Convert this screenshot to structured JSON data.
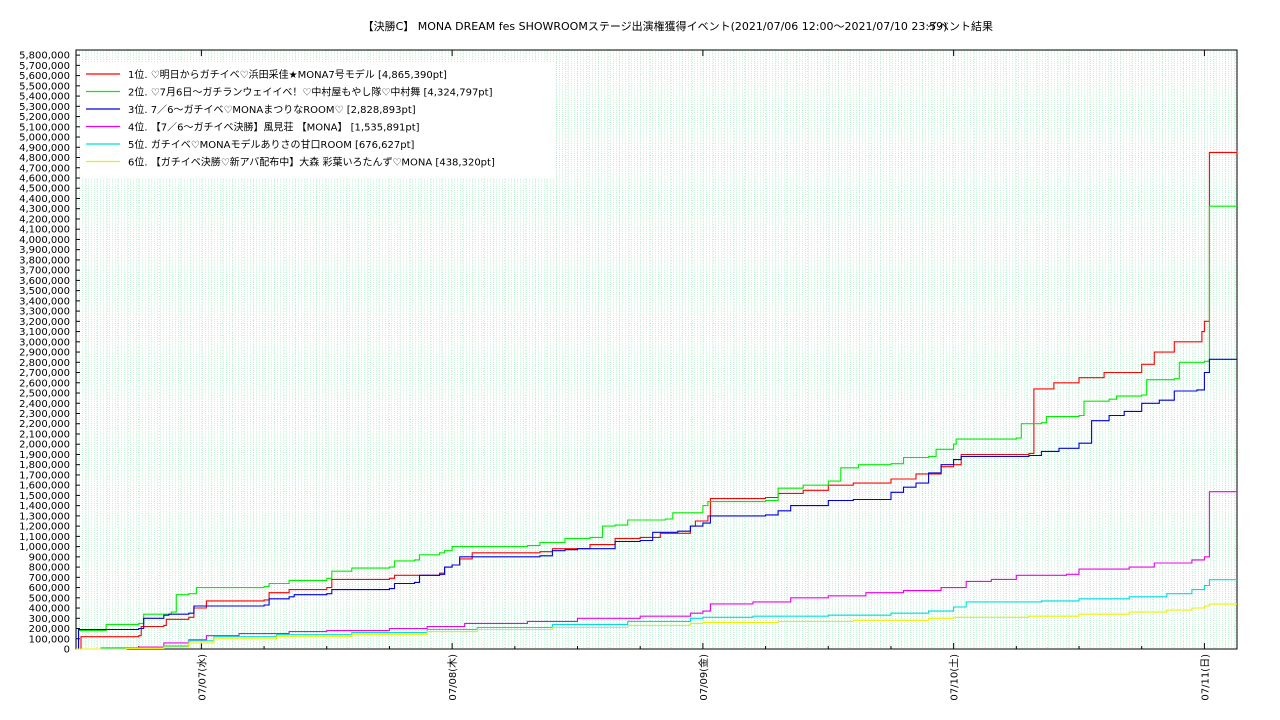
{
  "chart_data": {
    "type": "line",
    "title": "【決勝C】 MONA DREAM fes SHOWROOMステージ出演権獲得イベント(2021/07/06 12:00〜2021/07/10 23:59)",
    "subtitle": "イベント結果",
    "xlabel": "",
    "ylabel": "",
    "x_unit": "days since 2021/07/06 00:00",
    "xlim": [
      0.5,
      5.13
    ],
    "ylim": [
      0,
      5850000
    ],
    "x_ticks": [
      {
        "x": 1,
        "label": "07/07(水)"
      },
      {
        "x": 2,
        "label": "07/08(木)"
      },
      {
        "x": 3,
        "label": "07/09(金)"
      },
      {
        "x": 4,
        "label": "07/10(土)"
      },
      {
        "x": 5,
        "label": "07/11(日)"
      }
    ],
    "y_ticks": [
      "0",
      "100,000",
      "200,000",
      "300,000",
      "400,000",
      "500,000",
      "600,000",
      "700,000",
      "800,000",
      "900,000",
      "1,000,000",
      "1,100,000",
      "1,200,000",
      "1,300,000",
      "1,400,000",
      "1,500,000",
      "1,600,000",
      "1,700,000",
      "1,800,000",
      "1,900,000",
      "2,000,000",
      "2,100,000",
      "2,200,000",
      "2,300,000",
      "2,400,000",
      "2,500,000",
      "2,600,000",
      "2,700,000",
      "2,800,000",
      "2,900,000",
      "3,000,000",
      "3,100,000",
      "3,200,000",
      "3,300,000",
      "3,400,000",
      "3,500,000",
      "3,600,000",
      "3,700,000",
      "3,800,000",
      "3,900,000",
      "4,000,000",
      "4,100,000",
      "4,200,000",
      "4,300,000",
      "4,400,000",
      "4,500,000",
      "4,600,000",
      "4,700,000",
      "4,800,000",
      "4,900,000",
      "5,000,000",
      "5,100,000",
      "5,200,000",
      "5,300,000",
      "5,400,000",
      "5,500,000",
      "5,600,000",
      "5,700,000",
      "5,800,000"
    ],
    "grid": true,
    "legend_position": "top-left",
    "series": [
      {
        "name": "1位. ♡明日からガチイベ♡浜田采佳★MONA7号モデル [4,865,390pt]",
        "color": "#ff0000",
        "points": [
          [
            0.5,
            0
          ],
          [
            0.52,
            120000
          ],
          [
            0.75,
            130000
          ],
          [
            0.76,
            220000
          ],
          [
            0.85,
            230000
          ],
          [
            0.86,
            290000
          ],
          [
            0.95,
            310000
          ],
          [
            0.97,
            400000
          ],
          [
            1.02,
            470000
          ],
          [
            1.25,
            480000
          ],
          [
            1.27,
            550000
          ],
          [
            1.35,
            580000
          ],
          [
            1.5,
            600000
          ],
          [
            1.52,
            680000
          ],
          [
            1.75,
            690000
          ],
          [
            1.77,
            720000
          ],
          [
            1.95,
            740000
          ],
          [
            1.97,
            800000
          ],
          [
            2.0,
            820000
          ],
          [
            2.03,
            880000
          ],
          [
            2.08,
            940000
          ],
          [
            2.35,
            950000
          ],
          [
            2.4,
            980000
          ],
          [
            2.55,
            1020000
          ],
          [
            2.65,
            1080000
          ],
          [
            2.75,
            1090000
          ],
          [
            2.83,
            1130000
          ],
          [
            2.95,
            1200000
          ],
          [
            2.97,
            1250000
          ],
          [
            3.02,
            1300000
          ],
          [
            3.03,
            1470000
          ],
          [
            3.25,
            1480000
          ],
          [
            3.3,
            1520000
          ],
          [
            3.4,
            1550000
          ],
          [
            3.5,
            1600000
          ],
          [
            3.6,
            1620000
          ],
          [
            3.75,
            1660000
          ],
          [
            3.85,
            1710000
          ],
          [
            3.95,
            1780000
          ],
          [
            4.0,
            1800000
          ],
          [
            4.03,
            1900000
          ],
          [
            4.3,
            1910000
          ],
          [
            4.32,
            2540000
          ],
          [
            4.4,
            2600000
          ],
          [
            4.5,
            2650000
          ],
          [
            4.6,
            2700000
          ],
          [
            4.75,
            2780000
          ],
          [
            4.8,
            2900000
          ],
          [
            4.88,
            3000000
          ],
          [
            4.99,
            3100000
          ],
          [
            5.0,
            3200000
          ],
          [
            5.02,
            4850000
          ],
          [
            5.13,
            4865390
          ]
        ]
      },
      {
        "name": "2位. ♡7月6日〜ガチランウェイイベ！♡中村屋もやし隊♡中村舞 [4,324,797pt]",
        "color": "#00ee00",
        "points": [
          [
            0.5,
            0
          ],
          [
            0.51,
            180000
          ],
          [
            0.6,
            180000
          ],
          [
            0.62,
            240000
          ],
          [
            0.75,
            250000
          ],
          [
            0.77,
            340000
          ],
          [
            0.88,
            360000
          ],
          [
            0.9,
            530000
          ],
          [
            0.95,
            540000
          ],
          [
            0.98,
            600000
          ],
          [
            1.25,
            610000
          ],
          [
            1.27,
            640000
          ],
          [
            1.35,
            670000
          ],
          [
            1.5,
            690000
          ],
          [
            1.52,
            760000
          ],
          [
            1.6,
            790000
          ],
          [
            1.75,
            800000
          ],
          [
            1.77,
            860000
          ],
          [
            1.85,
            870000
          ],
          [
            1.87,
            920000
          ],
          [
            1.95,
            940000
          ],
          [
            1.97,
            960000
          ],
          [
            2.0,
            1000000
          ],
          [
            2.3,
            1010000
          ],
          [
            2.35,
            1040000
          ],
          [
            2.45,
            1080000
          ],
          [
            2.55,
            1090000
          ],
          [
            2.6,
            1200000
          ],
          [
            2.65,
            1210000
          ],
          [
            2.7,
            1260000
          ],
          [
            2.85,
            1270000
          ],
          [
            2.88,
            1330000
          ],
          [
            3.0,
            1340000
          ],
          [
            3.0,
            1400000
          ],
          [
            3.02,
            1440000
          ],
          [
            3.25,
            1450000
          ],
          [
            3.3,
            1570000
          ],
          [
            3.4,
            1600000
          ],
          [
            3.5,
            1640000
          ],
          [
            3.55,
            1770000
          ],
          [
            3.62,
            1800000
          ],
          [
            3.75,
            1810000
          ],
          [
            3.8,
            1870000
          ],
          [
            3.9,
            1880000
          ],
          [
            3.93,
            1950000
          ],
          [
            4.0,
            2000000
          ],
          [
            4.01,
            2050000
          ],
          [
            4.25,
            2060000
          ],
          [
            4.27,
            2200000
          ],
          [
            4.35,
            2210000
          ],
          [
            4.37,
            2270000
          ],
          [
            4.5,
            2280000
          ],
          [
            4.52,
            2420000
          ],
          [
            4.62,
            2440000
          ],
          [
            4.65,
            2470000
          ],
          [
            4.75,
            2480000
          ],
          [
            4.77,
            2630000
          ],
          [
            4.88,
            2640000
          ],
          [
            4.9,
            2800000
          ],
          [
            5.0,
            2810000
          ],
          [
            5.02,
            4324797
          ],
          [
            5.13,
            4324797
          ]
        ]
      },
      {
        "name": "3位. 7／6〜ガチイベ♡MONAまつりなROOM♡ [2,828,893pt]",
        "color": "#0000dd",
        "points": [
          [
            0.5,
            0
          ],
          [
            0.51,
            190000
          ],
          [
            0.75,
            200000
          ],
          [
            0.77,
            300000
          ],
          [
            0.85,
            330000
          ],
          [
            0.87,
            340000
          ],
          [
            0.95,
            350000
          ],
          [
            0.97,
            420000
          ],
          [
            1.25,
            430000
          ],
          [
            1.27,
            490000
          ],
          [
            1.35,
            510000
          ],
          [
            1.37,
            530000
          ],
          [
            1.5,
            540000
          ],
          [
            1.52,
            580000
          ],
          [
            1.75,
            590000
          ],
          [
            1.77,
            640000
          ],
          [
            1.85,
            650000
          ],
          [
            1.87,
            720000
          ],
          [
            1.95,
            730000
          ],
          [
            1.97,
            800000
          ],
          [
            2.0,
            820000
          ],
          [
            2.03,
            900000
          ],
          [
            2.35,
            910000
          ],
          [
            2.4,
            960000
          ],
          [
            2.45,
            970000
          ],
          [
            2.5,
            980000
          ],
          [
            2.65,
            1050000
          ],
          [
            2.75,
            1060000
          ],
          [
            2.8,
            1140000
          ],
          [
            2.9,
            1150000
          ],
          [
            2.95,
            1200000
          ],
          [
            3.0,
            1230000
          ],
          [
            3.03,
            1300000
          ],
          [
            3.25,
            1310000
          ],
          [
            3.3,
            1350000
          ],
          [
            3.35,
            1400000
          ],
          [
            3.5,
            1450000
          ],
          [
            3.6,
            1460000
          ],
          [
            3.75,
            1530000
          ],
          [
            3.8,
            1580000
          ],
          [
            3.85,
            1620000
          ],
          [
            3.9,
            1720000
          ],
          [
            3.95,
            1800000
          ],
          [
            4.0,
            1850000
          ],
          [
            4.03,
            1880000
          ],
          [
            4.3,
            1890000
          ],
          [
            4.35,
            1930000
          ],
          [
            4.42,
            1960000
          ],
          [
            4.5,
            2010000
          ],
          [
            4.55,
            2230000
          ],
          [
            4.62,
            2280000
          ],
          [
            4.68,
            2320000
          ],
          [
            4.75,
            2400000
          ],
          [
            4.82,
            2430000
          ],
          [
            4.88,
            2520000
          ],
          [
            4.97,
            2530000
          ],
          [
            5.0,
            2700000
          ],
          [
            5.02,
            2828893
          ],
          [
            5.13,
            2828893
          ]
        ]
      },
      {
        "name": "4位. 【7／6〜ガチイベ決勝】風見荘 【MONA】 [1,535,891pt]",
        "color": "#ee00ee",
        "points": [
          [
            0.5,
            0
          ],
          [
            0.6,
            10000
          ],
          [
            0.75,
            20000
          ],
          [
            0.85,
            60000
          ],
          [
            0.95,
            90000
          ],
          [
            1.02,
            130000
          ],
          [
            1.15,
            150000
          ],
          [
            1.35,
            170000
          ],
          [
            1.5,
            180000
          ],
          [
            1.75,
            200000
          ],
          [
            1.9,
            220000
          ],
          [
            2.05,
            250000
          ],
          [
            2.3,
            270000
          ],
          [
            2.5,
            300000
          ],
          [
            2.75,
            320000
          ],
          [
            2.95,
            350000
          ],
          [
            3.0,
            370000
          ],
          [
            3.03,
            440000
          ],
          [
            3.2,
            460000
          ],
          [
            3.35,
            500000
          ],
          [
            3.5,
            520000
          ],
          [
            3.65,
            550000
          ],
          [
            3.8,
            570000
          ],
          [
            3.95,
            600000
          ],
          [
            4.05,
            660000
          ],
          [
            4.15,
            680000
          ],
          [
            4.25,
            720000
          ],
          [
            4.45,
            730000
          ],
          [
            4.5,
            780000
          ],
          [
            4.7,
            800000
          ],
          [
            4.8,
            840000
          ],
          [
            4.95,
            870000
          ],
          [
            5.0,
            900000
          ],
          [
            5.02,
            1535891
          ],
          [
            5.13,
            1535891
          ]
        ]
      },
      {
        "name": "5位. ガチイベ♡MONAモデルありさの甘口ROOM [676,627pt]",
        "color": "#00dddd",
        "points": [
          [
            0.5,
            0
          ],
          [
            0.6,
            5000
          ],
          [
            0.75,
            15000
          ],
          [
            0.85,
            30000
          ],
          [
            0.95,
            80000
          ],
          [
            1.05,
            120000
          ],
          [
            1.3,
            140000
          ],
          [
            1.6,
            160000
          ],
          [
            1.9,
            190000
          ],
          [
            2.1,
            210000
          ],
          [
            2.4,
            240000
          ],
          [
            2.7,
            270000
          ],
          [
            2.95,
            300000
          ],
          [
            3.0,
            310000
          ],
          [
            3.2,
            320000
          ],
          [
            3.5,
            330000
          ],
          [
            3.75,
            350000
          ],
          [
            3.9,
            370000
          ],
          [
            4.0,
            410000
          ],
          [
            4.05,
            460000
          ],
          [
            4.35,
            470000
          ],
          [
            4.5,
            490000
          ],
          [
            4.7,
            510000
          ],
          [
            4.85,
            540000
          ],
          [
            4.95,
            580000
          ],
          [
            5.0,
            620000
          ],
          [
            5.02,
            676627
          ],
          [
            5.13,
            676627
          ]
        ]
      },
      {
        "name": "6位. 【ガチイベ決勝♡新アバ配布中】大森 彩葉いろたんず♡MONA [438,320pt]",
        "color": "#eeee00",
        "points": [
          [
            0.5,
            0
          ],
          [
            0.7,
            5000
          ],
          [
            0.85,
            20000
          ],
          [
            0.95,
            60000
          ],
          [
            1.05,
            100000
          ],
          [
            1.3,
            120000
          ],
          [
            1.6,
            140000
          ],
          [
            1.9,
            170000
          ],
          [
            2.1,
            190000
          ],
          [
            2.4,
            210000
          ],
          [
            2.7,
            230000
          ],
          [
            2.95,
            250000
          ],
          [
            3.0,
            260000
          ],
          [
            3.3,
            270000
          ],
          [
            3.6,
            280000
          ],
          [
            3.9,
            300000
          ],
          [
            4.0,
            310000
          ],
          [
            4.3,
            320000
          ],
          [
            4.5,
            340000
          ],
          [
            4.7,
            360000
          ],
          [
            4.85,
            380000
          ],
          [
            4.95,
            400000
          ],
          [
            5.0,
            420000
          ],
          [
            5.02,
            438320
          ],
          [
            5.13,
            438320
          ]
        ]
      }
    ]
  }
}
